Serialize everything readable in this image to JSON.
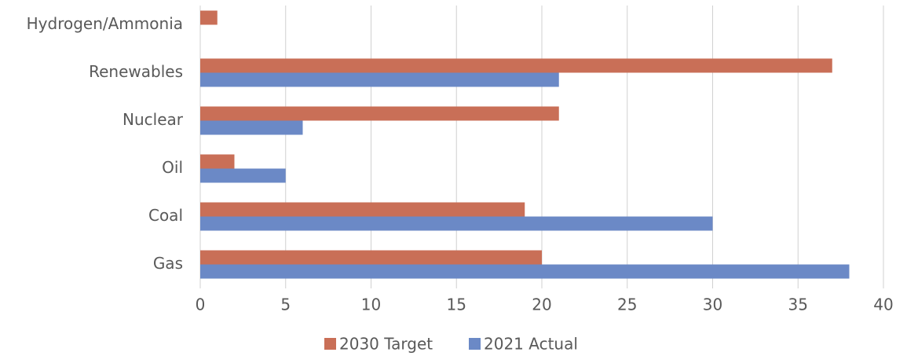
{
  "chart_data": {
    "type": "barh",
    "categories": [
      "Gas",
      "Coal",
      "Oil",
      "Nuclear",
      "Renewables",
      "Hydrogen/Ammonia"
    ],
    "series": [
      {
        "name": "2030 Target",
        "color": "#c96f57",
        "values": [
          20,
          19,
          2,
          21,
          37,
          1
        ]
      },
      {
        "name": "2021 Actual",
        "color": "#6b89c6",
        "values": [
          38,
          30,
          5,
          6,
          21,
          0
        ]
      }
    ],
    "xlim": [
      0,
      40
    ],
    "xticks": [
      0,
      5,
      10,
      15,
      20,
      25,
      30,
      35,
      40
    ],
    "grid": true,
    "legend": "bottom"
  }
}
